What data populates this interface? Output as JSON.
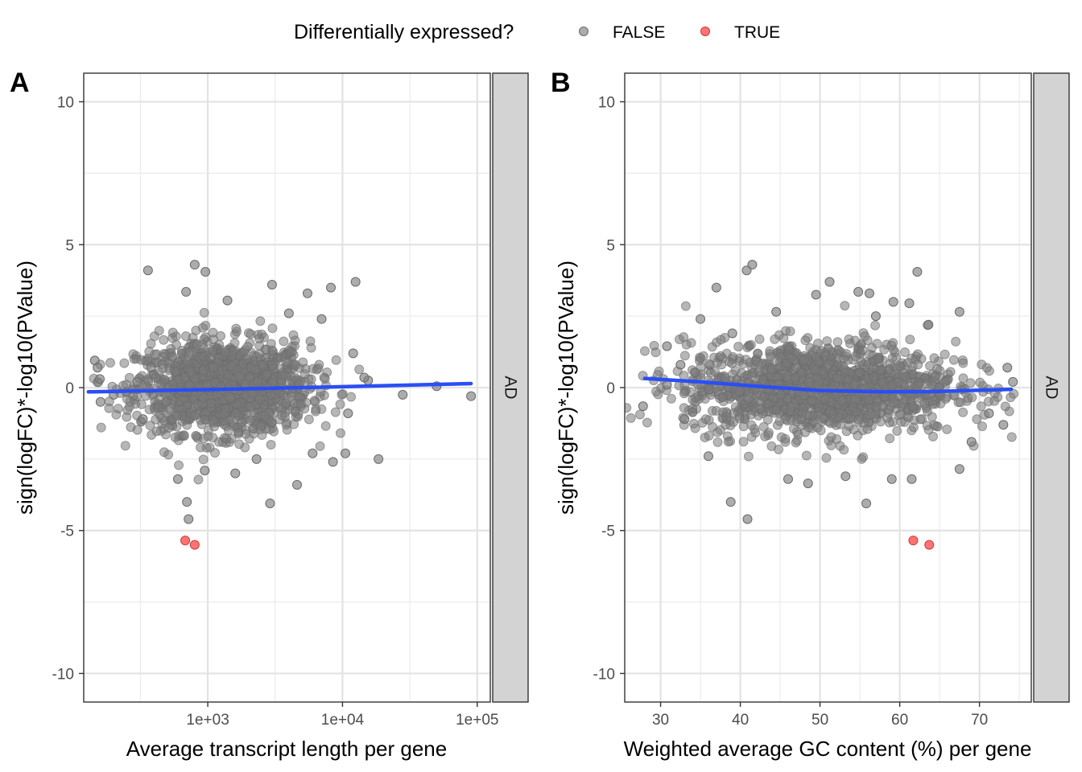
{
  "legend": {
    "title": "Differentially expressed?",
    "entries": [
      {
        "label": "FALSE",
        "color": "#808080"
      },
      {
        "label": "TRUE",
        "color": "#ff5a5a"
      }
    ]
  },
  "chart_data": [
    {
      "type": "scatter",
      "panel_tag": "A",
      "facet_label": "AD",
      "xlabel": "Average transcript length per gene",
      "ylabel": "sign(logFC)*-log10(PValue)",
      "x_scale": "log10",
      "xlim": [
        120,
        125000
      ],
      "ylim": [
        -11,
        11
      ],
      "x_ticks": [
        1000,
        10000,
        100000
      ],
      "x_tick_labels": [
        "1e+03",
        "1e+04",
        "1e+05"
      ],
      "y_ticks": [
        -10,
        -5,
        0,
        5,
        10
      ],
      "y_tick_labels": [
        "-10",
        "-5",
        "0",
        "5",
        "10"
      ],
      "grid": true,
      "cloud": {
        "x_center": 1300,
        "x_spread": 0.32,
        "y_spread": 0.8,
        "count": 1400
      },
      "points_false": [
        {
          "x": 145,
          "y": 0.95
        },
        {
          "x": 152,
          "y": 0.7
        },
        {
          "x": 158,
          "y": 0.3
        },
        {
          "x": 160,
          "y": -0.5
        },
        {
          "x": 200,
          "y": -0.25
        },
        {
          "x": 300,
          "y": 0.2
        },
        {
          "x": 360,
          "y": 4.1
        },
        {
          "x": 690,
          "y": 3.35
        },
        {
          "x": 800,
          "y": 4.3
        },
        {
          "x": 960,
          "y": 4.05
        },
        {
          "x": 1400,
          "y": 3.05
        },
        {
          "x": 3000,
          "y": 3.6
        },
        {
          "x": 5500,
          "y": 3.3
        },
        {
          "x": 8200,
          "y": 3.5
        },
        {
          "x": 12500,
          "y": 3.7
        },
        {
          "x": 7000,
          "y": 2.4
        },
        {
          "x": 4000,
          "y": 2.6
        },
        {
          "x": 15500,
          "y": 0.25
        },
        {
          "x": 28000,
          "y": -0.25
        },
        {
          "x": 50000,
          "y": 0.05
        },
        {
          "x": 90000,
          "y": -0.3
        },
        {
          "x": 600,
          "y": -3.2
        },
        {
          "x": 700,
          "y": -4.0
        },
        {
          "x": 720,
          "y": -4.6
        },
        {
          "x": 1600,
          "y": -3.0
        },
        {
          "x": 2900,
          "y": -4.05
        },
        {
          "x": 4600,
          "y": -3.4
        },
        {
          "x": 8500,
          "y": -2.6
        },
        {
          "x": 18500,
          "y": -2.5
        },
        {
          "x": 10500,
          "y": -2.3
        },
        {
          "x": 2300,
          "y": -2.5
        },
        {
          "x": 950,
          "y": -2.9
        },
        {
          "x": 6000,
          "y": -2.3
        },
        {
          "x": 12000,
          "y": 1.2
        },
        {
          "x": 11000,
          "y": -0.9
        },
        {
          "x": 330,
          "y": -1.1
        },
        {
          "x": 380,
          "y": 0.7
        },
        {
          "x": 14500,
          "y": 0.35
        }
      ],
      "points_true": [
        {
          "x": 680,
          "y": -5.35
        },
        {
          "x": 800,
          "y": -5.5
        }
      ],
      "trend": [
        {
          "x": 130,
          "y": -0.15
        },
        {
          "x": 1000,
          "y": -0.07
        },
        {
          "x": 10000,
          "y": 0.03
        },
        {
          "x": 90000,
          "y": 0.14
        }
      ]
    },
    {
      "type": "scatter",
      "panel_tag": "B",
      "facet_label": "AD",
      "xlabel": "Weighted average GC content (%) per gene",
      "ylabel": "sign(logFC)*-log10(PValue)",
      "x_scale": "linear",
      "xlim": [
        25.5,
        76.5
      ],
      "ylim": [
        -11,
        11
      ],
      "x_ticks": [
        30,
        40,
        50,
        60,
        70
      ],
      "x_tick_labels": [
        "30",
        "40",
        "50",
        "60",
        "70"
      ],
      "y_ticks": [
        -10,
        -5,
        0,
        5,
        10
      ],
      "y_tick_labels": [
        "-10",
        "-5",
        "0",
        "5",
        "10"
      ],
      "grid": true,
      "cloud": {
        "x_center": 50,
        "x_spread": 8.5,
        "y_spread": 0.8,
        "count": 1400
      },
      "points_false": [
        {
          "x": 27.8,
          "y": -0.65
        },
        {
          "x": 30.8,
          "y": 1.45
        },
        {
          "x": 30.8,
          "y": 0.1
        },
        {
          "x": 32.5,
          "y": 0.8
        },
        {
          "x": 33,
          "y": -1.1
        },
        {
          "x": 37,
          "y": 3.5
        },
        {
          "x": 40.8,
          "y": 4.1
        },
        {
          "x": 41.5,
          "y": 4.3
        },
        {
          "x": 44.5,
          "y": 2.65
        },
        {
          "x": 49.5,
          "y": 3.25
        },
        {
          "x": 51.2,
          "y": 3.7
        },
        {
          "x": 54.8,
          "y": 3.35
        },
        {
          "x": 56.2,
          "y": 3.3
        },
        {
          "x": 59.2,
          "y": 3.0
        },
        {
          "x": 61.2,
          "y": 2.95
        },
        {
          "x": 62.2,
          "y": 4.05
        },
        {
          "x": 67.5,
          "y": 2.65
        },
        {
          "x": 57,
          "y": 2.5
        },
        {
          "x": 73.5,
          "y": 0.7
        },
        {
          "x": 74.2,
          "y": 0.2
        },
        {
          "x": 73,
          "y": -1.3
        },
        {
          "x": 71.2,
          "y": -0.9
        },
        {
          "x": 38.8,
          "y": -4.0
        },
        {
          "x": 40.9,
          "y": -4.6
        },
        {
          "x": 55.8,
          "y": -4.05
        },
        {
          "x": 46,
          "y": -3.2
        },
        {
          "x": 48.5,
          "y": -3.35
        },
        {
          "x": 53.2,
          "y": -3.1
        },
        {
          "x": 59,
          "y": -3.2
        },
        {
          "x": 61.5,
          "y": -3.2
        },
        {
          "x": 67.5,
          "y": -2.85
        },
        {
          "x": 36,
          "y": -2.4
        },
        {
          "x": 63.6,
          "y": 2.2
        },
        {
          "x": 35,
          "y": 2.4
        },
        {
          "x": 69,
          "y": -1.9
        },
        {
          "x": 39,
          "y": 1.9
        }
      ],
      "points_true": [
        {
          "x": 61.7,
          "y": -5.35
        },
        {
          "x": 63.7,
          "y": -5.5
        }
      ],
      "trend": [
        {
          "x": 28,
          "y": 0.32
        },
        {
          "x": 35,
          "y": 0.2
        },
        {
          "x": 42,
          "y": 0.05
        },
        {
          "x": 50,
          "y": -0.1
        },
        {
          "x": 58,
          "y": -0.15
        },
        {
          "x": 64,
          "y": -0.14
        },
        {
          "x": 74,
          "y": -0.06
        }
      ]
    }
  ]
}
